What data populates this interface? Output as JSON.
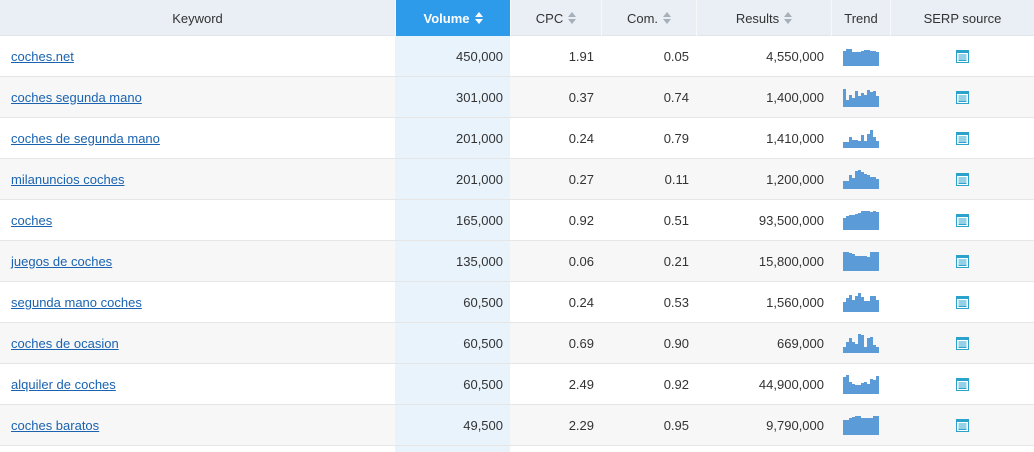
{
  "columns": [
    {
      "key": "keyword",
      "label": "Keyword",
      "sortable": false,
      "active": false
    },
    {
      "key": "volume",
      "label": "Volume",
      "sortable": true,
      "active": true
    },
    {
      "key": "cpc",
      "label": "CPC",
      "sortable": true,
      "active": false
    },
    {
      "key": "com",
      "label": "Com.",
      "sortable": true,
      "active": false
    },
    {
      "key": "results",
      "label": "Results",
      "sortable": true,
      "active": false
    },
    {
      "key": "trend",
      "label": "Trend",
      "sortable": false,
      "active": false
    },
    {
      "key": "serp",
      "label": "SERP source",
      "sortable": false,
      "active": false
    }
  ],
  "rows": [
    {
      "keyword": "coches.net",
      "volume": "450,000",
      "cpc": "1.91",
      "com": "0.05",
      "results": "4,550,000",
      "trend": [
        0.75,
        0.85,
        0.85,
        0.7,
        0.7,
        0.7,
        0.75,
        0.8,
        0.8,
        0.75,
        0.75,
        0.7
      ]
    },
    {
      "keyword": "coches segunda mano",
      "volume": "301,000",
      "cpc": "0.37",
      "com": "0.74",
      "results": "1,400,000",
      "trend": [
        0.9,
        0.35,
        0.6,
        0.45,
        0.8,
        0.55,
        0.7,
        0.6,
        0.85,
        0.75,
        0.8,
        0.55
      ]
    },
    {
      "keyword": "coches de segunda mano",
      "volume": "201,000",
      "cpc": "0.24",
      "com": "0.79",
      "results": "1,410,000",
      "trend": [
        0.3,
        0.3,
        0.55,
        0.4,
        0.4,
        0.35,
        0.65,
        0.35,
        0.7,
        0.9,
        0.55,
        0.35
      ]
    },
    {
      "keyword": "milanuncios coches",
      "volume": "201,000",
      "cpc": "0.27",
      "com": "0.11",
      "results": "1,200,000",
      "trend": [
        0.4,
        0.4,
        0.7,
        0.55,
        0.9,
        0.95,
        0.85,
        0.75,
        0.7,
        0.6,
        0.6,
        0.5
      ]
    },
    {
      "keyword": "coches",
      "volume": "165,000",
      "cpc": "0.92",
      "com": "0.51",
      "results": "93,500,000",
      "trend": [
        0.6,
        0.7,
        0.75,
        0.75,
        0.8,
        0.85,
        0.95,
        0.95,
        0.95,
        0.9,
        0.95,
        0.9
      ]
    },
    {
      "keyword": "juegos de coches",
      "volume": "135,000",
      "cpc": "0.06",
      "com": "0.21",
      "results": "15,800,000",
      "trend": [
        0.95,
        0.95,
        0.9,
        0.85,
        0.75,
        0.75,
        0.75,
        0.75,
        0.7,
        0.95,
        0.95,
        0.95
      ]
    },
    {
      "keyword": "segunda mano coches",
      "volume": "60,500",
      "cpc": "0.24",
      "com": "0.53",
      "results": "1,560,000",
      "trend": [
        0.5,
        0.7,
        0.85,
        0.6,
        0.8,
        0.95,
        0.75,
        0.55,
        0.55,
        0.8,
        0.8,
        0.6
      ]
    },
    {
      "keyword": "coches de ocasion",
      "volume": "60,500",
      "cpc": "0.69",
      "com": "0.90",
      "results": "669,000",
      "trend": [
        0.3,
        0.55,
        0.75,
        0.55,
        0.45,
        0.95,
        0.9,
        0.3,
        0.75,
        0.8,
        0.4,
        0.3
      ]
    },
    {
      "keyword": "alquiler de coches",
      "volume": "60,500",
      "cpc": "2.49",
      "com": "0.92",
      "results": "44,900,000",
      "trend": [
        0.85,
        0.95,
        0.6,
        0.5,
        0.45,
        0.45,
        0.55,
        0.6,
        0.5,
        0.75,
        0.7,
        0.9
      ]
    },
    {
      "keyword": "coches baratos",
      "volume": "49,500",
      "cpc": "2.29",
      "com": "0.95",
      "results": "9,790,000",
      "trend": [
        0.75,
        0.75,
        0.85,
        0.9,
        0.95,
        0.95,
        0.85,
        0.85,
        0.85,
        0.85,
        0.95,
        0.95
      ]
    }
  ],
  "colors": {
    "accent": "#2d9bea",
    "link": "#1a63b0",
    "trend_bar": "#5b9bd8",
    "serp_icon": "#2aa2cc"
  },
  "icons": {
    "sort": "sort-updown-icon",
    "serp": "serp-document-icon"
  }
}
